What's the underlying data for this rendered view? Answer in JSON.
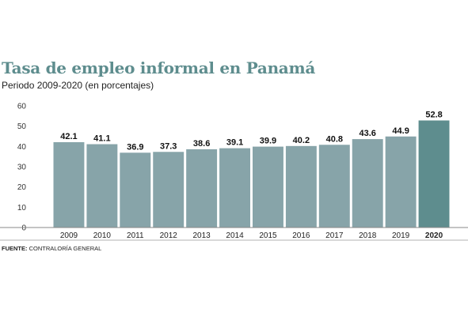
{
  "chart_data": {
    "type": "bar",
    "title": "Tasa de empleo informal en Panamá",
    "subtitle": "Periodo 2009-2020 (en porcentajes)",
    "categories": [
      "2009",
      "2010",
      "2011",
      "2012",
      "2013",
      "2014",
      "2015",
      "2016",
      "2017",
      "2018",
      "2019",
      "2020"
    ],
    "values": [
      42.1,
      41.1,
      36.9,
      37.3,
      38.6,
      39.1,
      39.9,
      40.2,
      40.8,
      43.6,
      44.9,
      52.8
    ],
    "value_labels": [
      "42.1",
      "41.1",
      "36.9",
      "37.3",
      "38.6",
      "39.1",
      "39.9",
      "40.2",
      "40.8",
      "43.6",
      "44.9",
      "52.8"
    ],
    "highlight_category": "2020",
    "ylim": [
      0,
      60
    ],
    "yticks": [
      "0",
      "10",
      "20",
      "30",
      "40",
      "50",
      "60"
    ],
    "xlabel": "",
    "ylabel": "",
    "grid": false,
    "colors": {
      "bar": "#87a4a9",
      "highlight": "#5e8d8e",
      "title": "#5e8d8e"
    }
  },
  "source": {
    "label": "FUENTE:",
    "text": "CONTRALORÍA GENERAL"
  }
}
